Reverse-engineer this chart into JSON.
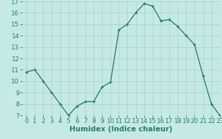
{
  "x": [
    0,
    1,
    2,
    3,
    4,
    5,
    6,
    7,
    8,
    9,
    10,
    11,
    12,
    13,
    14,
    15,
    16,
    17,
    18,
    19,
    20,
    21,
    22,
    23
  ],
  "y": [
    10.8,
    11.0,
    10.0,
    9.0,
    8.0,
    7.0,
    7.8,
    8.2,
    8.2,
    9.5,
    9.9,
    14.5,
    15.0,
    16.0,
    16.8,
    16.6,
    15.3,
    15.4,
    14.8,
    14.0,
    13.2,
    10.5,
    8.0,
    7.0
  ],
  "line_color": "#2d7a6e",
  "marker": "+",
  "bg_color": "#c5eae6",
  "grid_color": "#a8d4d0",
  "xlabel": "Humidex (Indice chaleur)",
  "xlim": [
    -0.5,
    23
  ],
  "ylim": [
    7,
    17
  ],
  "yticks": [
    7,
    8,
    9,
    10,
    11,
    12,
    13,
    14,
    15,
    16,
    17
  ],
  "xticks": [
    0,
    1,
    2,
    3,
    4,
    5,
    6,
    7,
    8,
    9,
    10,
    11,
    12,
    13,
    14,
    15,
    16,
    17,
    18,
    19,
    20,
    21,
    22,
    23
  ],
  "tick_fontsize": 6.5,
  "xlabel_fontsize": 7.5,
  "marker_size": 3,
  "linewidth": 1.0
}
